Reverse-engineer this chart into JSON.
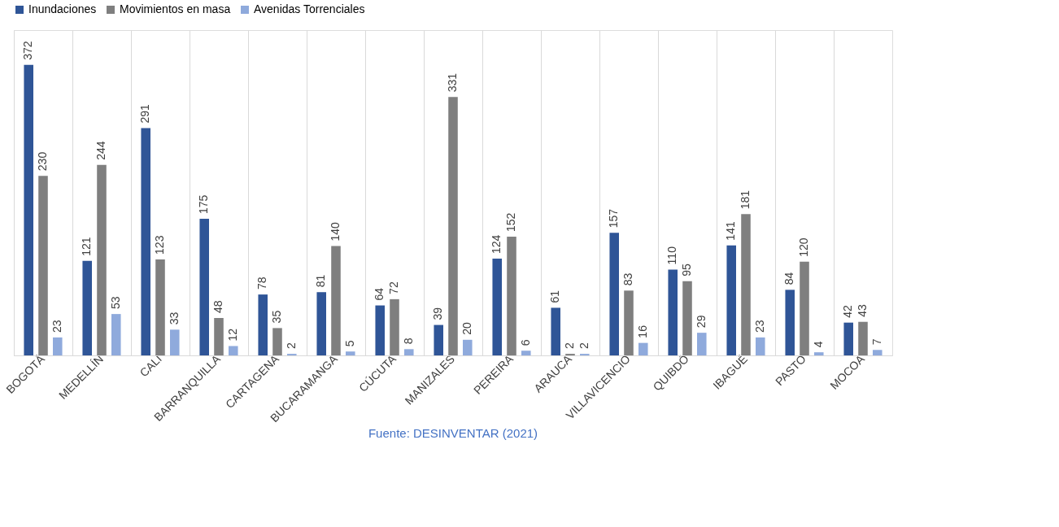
{
  "chart_data": {
    "type": "bar",
    "categories": [
      "BOGOTÁ",
      "MEDELLÍN",
      "CALI",
      "BARRANQUILLA",
      "CARTAGENA",
      "BUCARAMANGA",
      "CÚCUTA",
      "MANIZALES",
      "PEREIRA",
      "ARAUCA",
      "VILLAVICENCIO",
      "QUIBDÓ",
      "IBAGUÉ",
      "PASTO",
      "MOCOA"
    ],
    "series": [
      {
        "name": "Inundaciones",
        "color": "#2f5597",
        "values": [
          372,
          121,
          291,
          175,
          78,
          81,
          64,
          39,
          124,
          61,
          157,
          110,
          141,
          84,
          42
        ]
      },
      {
        "name": "Movimientos en masa",
        "color": "#7f7f7f",
        "values": [
          230,
          244,
          123,
          48,
          35,
          140,
          72,
          331,
          152,
          2,
          83,
          95,
          181,
          120,
          43
        ]
      },
      {
        "name": "Avenidas Torrenciales",
        "color": "#8faadc",
        "values": [
          23,
          53,
          33,
          12,
          2,
          5,
          8,
          20,
          6,
          2,
          16,
          29,
          23,
          4,
          7
        ]
      }
    ],
    "data_labels": true,
    "legend": "top",
    "grid": "x",
    "annotations": [
      "Fuente: DESINVENTAR (2021)"
    ]
  }
}
